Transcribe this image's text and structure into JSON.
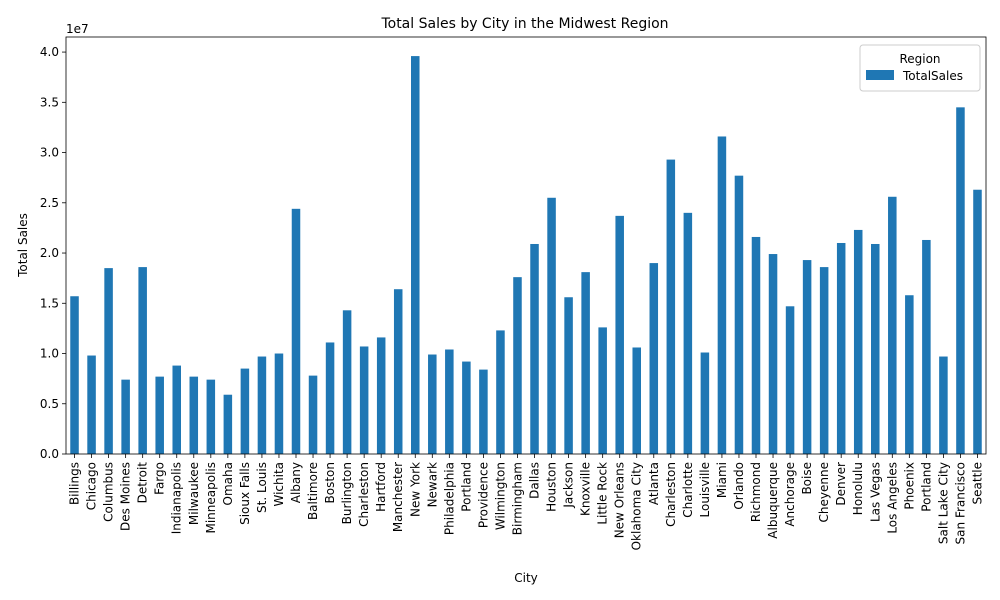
{
  "chart_data": {
    "type": "bar",
    "title": "Total Sales by City in the Midwest Region",
    "xlabel": "City",
    "ylabel": "Total Sales",
    "y_scale_label": "1e7",
    "ylim": [
      0,
      41500000.0
    ],
    "yticks": [
      0.0,
      0.5,
      1.0,
      1.5,
      2.0,
      2.5,
      3.0,
      3.5,
      4.0
    ],
    "ytick_labels": [
      "0.0",
      "0.5",
      "1.0",
      "1.5",
      "2.0",
      "2.5",
      "3.0",
      "3.5",
      "4.0"
    ],
    "grid": false,
    "legend": {
      "title": "Region",
      "position": "top-right",
      "entries": [
        "TotalSales"
      ]
    },
    "bar_color": "#1f77b4",
    "categories": [
      "Billings",
      "Chicago",
      "Columbus",
      "Des Moines",
      "Detroit",
      "Fargo",
      "Indianapolis",
      "Milwaukee",
      "Minneapolis",
      "Omaha",
      "Sioux Falls",
      "St. Louis",
      "Wichita",
      "Albany",
      "Baltimore",
      "Boston",
      "Burlington",
      "Charleston",
      "Hartford",
      "Manchester",
      "New York",
      "Newark",
      "Philadelphia",
      "Portland",
      "Providence",
      "Wilmington",
      "Birmingham",
      "Dallas",
      "Houston",
      "Jackson",
      "Knoxville",
      "Little Rock",
      "New Orleans",
      "Oklahoma City",
      "Atlanta",
      "Charleston",
      "Charlotte",
      "Louisville",
      "Miami",
      "Orlando",
      "Richmond",
      "Albuquerque",
      "Anchorage",
      "Boise",
      "Cheyenne",
      "Denver",
      "Honolulu",
      "Las Vegas",
      "Los Angeles",
      "Phoenix",
      "Portland",
      "Salt Lake City",
      "San Francisco",
      "Seattle"
    ],
    "series": [
      {
        "name": "TotalSales",
        "values": [
          15700000,
          9800000,
          18500000,
          7400000,
          18600000,
          7700000,
          8800000,
          7700000,
          7400000,
          5900000,
          8500000,
          9700000,
          10000000,
          24400000,
          7800000,
          11100000,
          14300000,
          10700000,
          11600000,
          16400000,
          39600000,
          9900000,
          10400000,
          9200000,
          8400000,
          12300000,
          17600000,
          20900000,
          25500000,
          15600000,
          18100000,
          12600000,
          23700000,
          10600000,
          19000000,
          29300000,
          24000000,
          10100000,
          31600000,
          27700000,
          21600000,
          19900000,
          14700000,
          19300000,
          18600000,
          21000000,
          22300000,
          20900000,
          25600000,
          15800000,
          21300000,
          9700000,
          34500000,
          26300000
        ]
      }
    ]
  }
}
